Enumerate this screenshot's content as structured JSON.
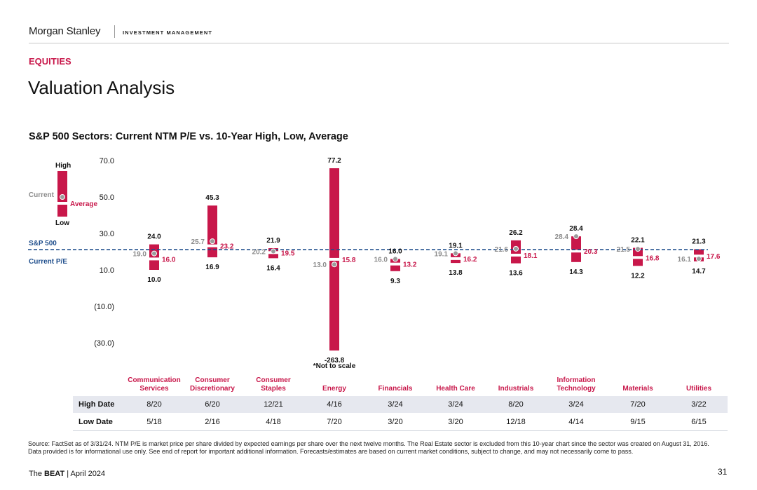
{
  "header": {
    "brand": "Morgan Stanley",
    "brand_sub": "INVESTMENT MANAGEMENT",
    "section": "EQUITIES",
    "title": "Valuation Analysis",
    "subtitle": "S&P 500 Sectors: Current NTM P/E vs. 10-Year High, Low, Average"
  },
  "chart_data": {
    "type": "range-bar",
    "title": "S&P 500 Sectors: Current NTM P/E vs. 10-Year High, Low, Average",
    "y_ticks": [
      "70.0",
      "50.0",
      "30.0",
      "10.0",
      "(10.0)",
      "(30.0)"
    ],
    "y_tick_values": [
      70,
      50,
      30,
      10,
      -10,
      -30
    ],
    "ylim": [
      -30,
      77
    ],
    "legend": {
      "high": "High",
      "current": "Current",
      "average": "Average",
      "low": "Low"
    },
    "sp500_line": {
      "label1": "S&P 500",
      "label2": "Current P/E",
      "value": 21.1
    },
    "not_to_scale_note": "*Not to scale",
    "sectors": [
      {
        "name1": "Communication",
        "name2": "Services",
        "high": 24.0,
        "low": 10.0,
        "current": 19.0,
        "average": 16.0,
        "high_label": "24.0",
        "low_label": "10.0",
        "current_label": "19.0",
        "average_label": "16.0"
      },
      {
        "name1": "Consumer",
        "name2": "Discretionary",
        "high": 45.3,
        "low": 16.9,
        "current": 25.7,
        "average": 23.2,
        "high_label": "45.3",
        "low_label": "16.9",
        "current_label": "25.7",
        "average_label": "23.2"
      },
      {
        "name1": "Consumer",
        "name2": "Staples",
        "high": 21.9,
        "low": 16.4,
        "current": 20.2,
        "average": 19.5,
        "high_label": "21.9",
        "low_label": "16.4",
        "current_label": "20.2",
        "average_label": "19.5"
      },
      {
        "name1": "",
        "name2": "Energy",
        "high": 77.2,
        "low": -263.8,
        "current": 13.0,
        "average": 15.8,
        "high_label": "77.2",
        "low_label": "-263.8",
        "current_label": "13.0",
        "average_label": "15.8"
      },
      {
        "name1": "",
        "name2": "Financials",
        "high": 16.0,
        "low": 9.3,
        "current": 16.0,
        "average": 13.2,
        "high_label": "16.0",
        "low_label": "9.3",
        "current_label": "16.0",
        "average_label": "13.2"
      },
      {
        "name1": "",
        "name2": "Health Care",
        "high": 19.1,
        "low": 13.8,
        "current": 19.1,
        "average": 16.2,
        "high_label": "19.1",
        "low_label": "13.8",
        "current_label": "19.1",
        "average_label": "16.2"
      },
      {
        "name1": "",
        "name2": "Industrials",
        "high": 26.2,
        "low": 13.6,
        "current": 21.6,
        "average": 18.1,
        "high_label": "26.2",
        "low_label": "13.6",
        "current_label": "21.6",
        "average_label": "18.1"
      },
      {
        "name1": "Information",
        "name2": "Technology",
        "high": 28.4,
        "low": 14.3,
        "current": 28.4,
        "average": 20.3,
        "high_label": "28.4",
        "low_label": "14.3",
        "current_label": "28.4",
        "average_label": "20.3"
      },
      {
        "name1": "",
        "name2": "Materials",
        "high": 22.1,
        "low": 12.2,
        "current": 21.5,
        "average": 16.8,
        "high_label": "22.1",
        "low_label": "12.2",
        "current_label": "21.5",
        "average_label": "16.8"
      },
      {
        "name1": "",
        "name2": "Utilities",
        "high": 21.3,
        "low": 14.7,
        "current": 16.1,
        "average": 17.6,
        "high_label": "21.3",
        "low_label": "14.7",
        "current_label": "16.1",
        "average_label": "17.6"
      }
    ],
    "colors": {
      "bar": "#c8174a",
      "average_text": "#c8174a",
      "current_marker": "#9b9b9b",
      "current_text": "#8c8c8c",
      "sp500_line": "#1f4e8c",
      "axis_text": "#111111",
      "sector_label": "#c8174a"
    }
  },
  "table": {
    "high_label": "High Date",
    "low_label": "Low Date",
    "high_dates": [
      "8/20",
      "6/20",
      "12/21",
      "4/16",
      "3/24",
      "3/24",
      "8/20",
      "3/24",
      "7/20",
      "3/22"
    ],
    "low_dates": [
      "5/18",
      "2/16",
      "4/18",
      "7/20",
      "3/20",
      "3/20",
      "12/18",
      "4/14",
      "9/15",
      "6/15"
    ]
  },
  "footer": {
    "source": "Source: FactSet as of 3/31/24. NTM P/E is market price per share divided by expected earnings per share over the next twelve months. The Real Estate sector is excluded from this 10-year chart since the sector was created on August 31, 2016. Data provided is for informational use only. See end of report for important additional information. Forecasts/estimates are based on current market conditions, subject to change, and may not necessarily come to pass.",
    "publication_prefix": "The ",
    "publication_bold": "BEAT",
    "publication_suffix": " | April 2024",
    "page_number": "31"
  }
}
